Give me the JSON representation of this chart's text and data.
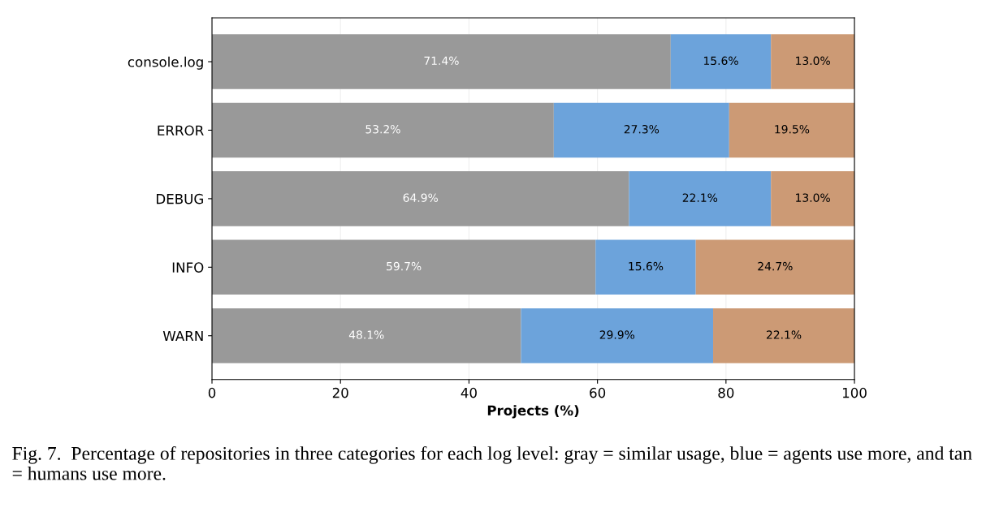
{
  "chart_data": {
    "type": "bar",
    "orientation": "horizontal",
    "stacked": true,
    "categories": [
      "console.log",
      "ERROR",
      "DEBUG",
      "INFO",
      "WARN"
    ],
    "series": [
      {
        "color": "#999999",
        "values": [
          71.4,
          53.2,
          64.9,
          59.7,
          48.1
        ],
        "value_labels": [
          "71.4%",
          "53.2%",
          "64.9%",
          "59.7%",
          "48.1%"
        ]
      },
      {
        "color": "#6ca3db",
        "values": [
          15.6,
          27.3,
          22.1,
          15.6,
          29.9
        ],
        "value_labels": [
          "15.6%",
          "27.3%",
          "22.1%",
          "15.6%",
          "29.9%"
        ]
      },
      {
        "color": "#cc9a75",
        "values": [
          13.0,
          19.5,
          13.0,
          24.7,
          22.1
        ],
        "value_labels": [
          "13.0%",
          "19.5%",
          "13.0%",
          "24.7%",
          "22.1%"
        ]
      }
    ],
    "xlabel": "Projects (%)",
    "xlim": [
      0,
      100
    ],
    "xticks": [
      0,
      20,
      40,
      60,
      80,
      100
    ],
    "grid": "x",
    "legend": false,
    "annotations": [
      "Fig. 7.  Percentage of repositories in three categories for each log level: gray = similar usage, blue = agents use more, and tan = humans use more."
    ]
  }
}
